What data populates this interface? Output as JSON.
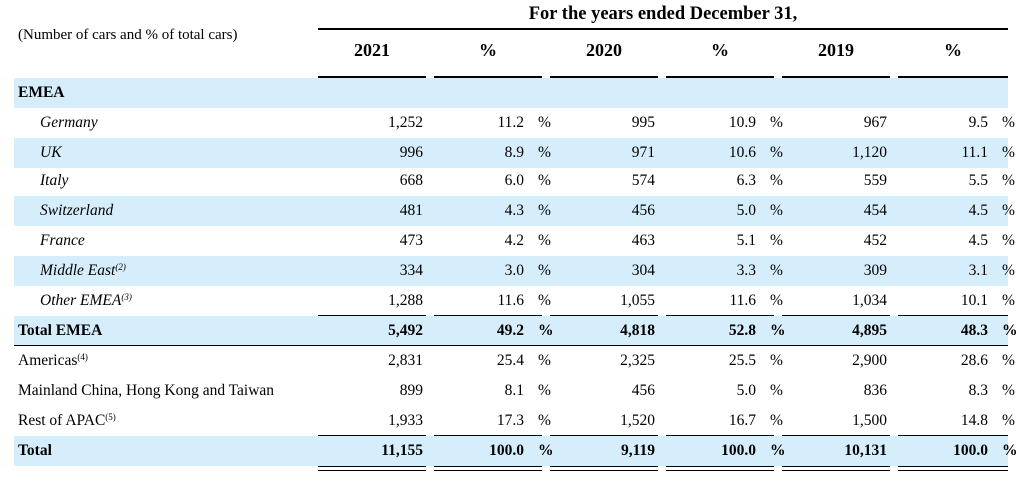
{
  "caption": "(Number of cars and % of total cars)",
  "period_title": "For the years ended December 31,",
  "columns": {
    "y2021": "2021",
    "p2021": "%",
    "y2020": "2020",
    "p2020": "%",
    "y2019": "2019",
    "p2019": "%"
  },
  "pct_sign": "%",
  "section": "EMEA",
  "rows": [
    {
      "label": "Germany",
      "note": "",
      "v2021": "1,252",
      "p2021": "11.2",
      "v2020": "995",
      "p2020": "10.9",
      "v2019": "967",
      "p2019": "9.5"
    },
    {
      "label": "UK",
      "note": "",
      "v2021": "996",
      "p2021": "8.9",
      "v2020": "971",
      "p2020": "10.6",
      "v2019": "1,120",
      "p2019": "11.1"
    },
    {
      "label": "Italy",
      "note": "",
      "v2021": "668",
      "p2021": "6.0",
      "v2020": "574",
      "p2020": "6.3",
      "v2019": "559",
      "p2019": "5.5"
    },
    {
      "label": "Switzerland",
      "note": "",
      "v2021": "481",
      "p2021": "4.3",
      "v2020": "456",
      "p2020": "5.0",
      "v2019": "454",
      "p2019": "4.5"
    },
    {
      "label": "France",
      "note": "",
      "v2021": "473",
      "p2021": "4.2",
      "v2020": "463",
      "p2020": "5.1",
      "v2019": "452",
      "p2019": "4.5"
    },
    {
      "label": "Middle East",
      "note": "(2)",
      "v2021": "334",
      "p2021": "3.0",
      "v2020": "304",
      "p2020": "3.3",
      "v2019": "309",
      "p2019": "3.1"
    },
    {
      "label": "Other EMEA",
      "note": "(3)",
      "v2021": "1,288",
      "p2021": "11.6",
      "v2020": "1,055",
      "p2020": "11.6",
      "v2019": "1,034",
      "p2019": "10.1"
    },
    {
      "label": "Total EMEA",
      "note": "",
      "v2021": "5,492",
      "p2021": "49.2",
      "v2020": "4,818",
      "p2020": "52.8",
      "v2019": "4,895",
      "p2019": "48.3"
    },
    {
      "label": "Americas",
      "note": "(4)",
      "v2021": "2,831",
      "p2021": "25.4",
      "v2020": "2,325",
      "p2020": "25.5",
      "v2019": "2,900",
      "p2019": "28.6"
    },
    {
      "label": "Mainland China, Hong Kong and Taiwan",
      "note": "",
      "v2021": "899",
      "p2021": "8.1",
      "v2020": "456",
      "p2020": "5.0",
      "v2019": "836",
      "p2019": "8.3"
    },
    {
      "label": "Rest of APAC",
      "note": "(5)",
      "v2021": "1,933",
      "p2021": "17.3",
      "v2020": "1,520",
      "p2020": "16.7",
      "v2019": "1,500",
      "p2019": "14.8"
    },
    {
      "label": "Total",
      "note": "",
      "v2021": "11,155",
      "p2021": "100.0",
      "v2020": "9,119",
      "p2020": "100.0",
      "v2019": "10,131",
      "p2019": "100.0"
    }
  ]
}
